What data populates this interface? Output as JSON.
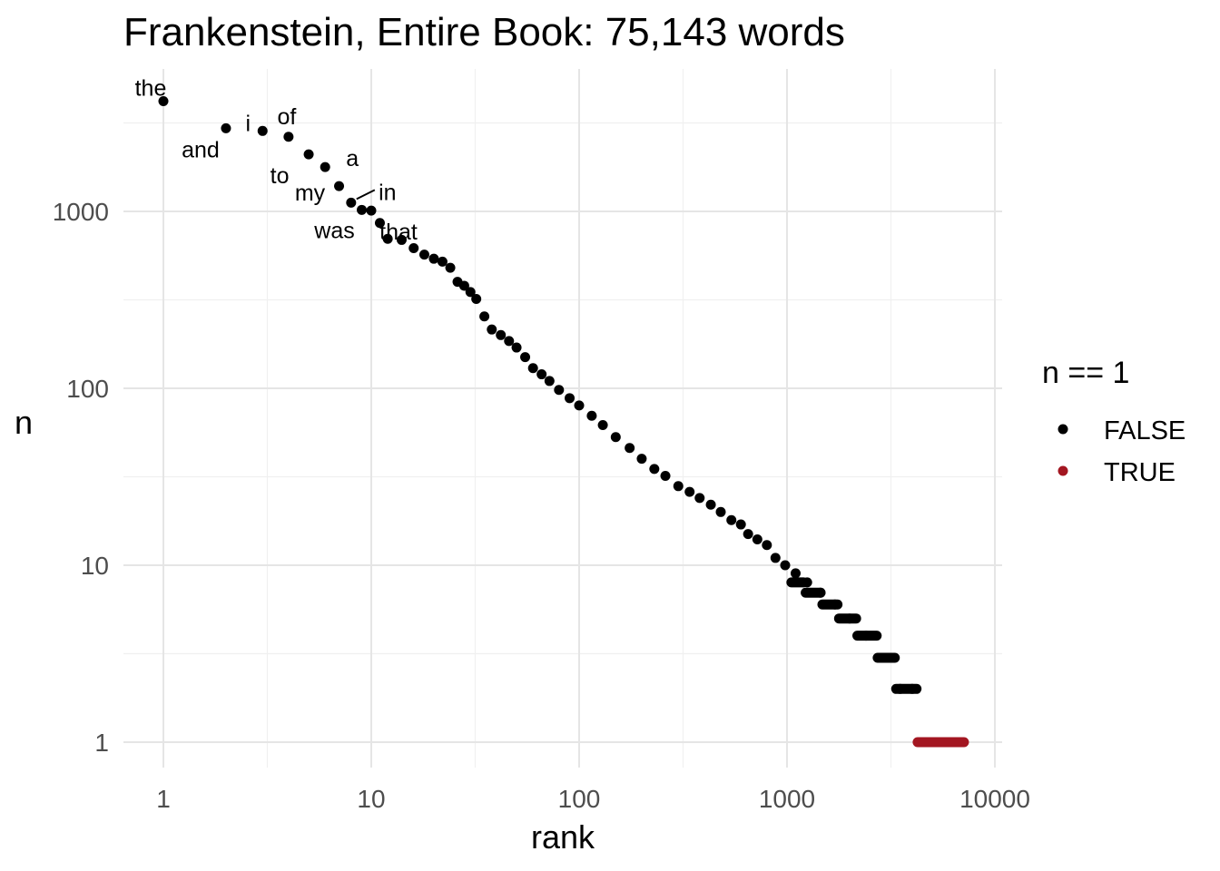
{
  "chart_data": {
    "type": "scatter",
    "title": "Frankenstein, Entire Book: 75,143 words",
    "xlabel": "rank",
    "ylabel": "n",
    "x_scale": "log10",
    "y_scale": "log10",
    "xlim": [
      0.8,
      10000
    ],
    "ylim": [
      0.8,
      6000
    ],
    "x_ticks": [
      1,
      10,
      100,
      1000,
      10000
    ],
    "x_tick_labels": [
      "1",
      "10",
      "100",
      "1000",
      "10000"
    ],
    "y_ticks": [
      1,
      10,
      100,
      1000
    ],
    "y_tick_labels": [
      "1",
      "10",
      "100",
      "1000"
    ],
    "grid": true,
    "legend": {
      "title": "n == 1",
      "position": "right",
      "entries": [
        {
          "label": "FALSE",
          "color": "#000000"
        },
        {
          "label": "TRUE",
          "color": "#a31621"
        }
      ]
    },
    "labeled_points": [
      {
        "word": "the",
        "rank": 1,
        "n": 4200
      },
      {
        "word": "and",
        "rank": 2,
        "n": 2950
      },
      {
        "word": "i",
        "rank": 3,
        "n": 2850
      },
      {
        "word": "of",
        "rank": 4,
        "n": 2640
      },
      {
        "word": "to",
        "rank": 5,
        "n": 2100
      },
      {
        "word": "a",
        "rank": 6,
        "n": 1780
      },
      {
        "word": "my",
        "rank": 7,
        "n": 1390
      },
      {
        "word": "in",
        "rank": 8,
        "n": 1120
      },
      {
        "word": "was",
        "rank": 9,
        "n": 1020
      },
      {
        "word": "that",
        "rank": 10,
        "n": 1010
      }
    ],
    "series": [
      {
        "name": "FALSE",
        "color": "#000000",
        "points": [
          [
            11,
            860
          ],
          [
            12,
            700
          ],
          [
            14,
            690
          ],
          [
            16,
            620
          ],
          [
            18,
            570
          ],
          [
            20,
            540
          ],
          [
            22,
            520
          ],
          [
            24,
            480
          ],
          [
            26,
            400
          ],
          [
            28,
            380
          ],
          [
            30,
            350
          ],
          [
            32,
            320
          ],
          [
            35,
            255
          ],
          [
            38,
            215
          ],
          [
            42,
            200
          ],
          [
            46,
            185
          ],
          [
            50,
            170
          ],
          [
            55,
            150
          ],
          [
            60,
            130
          ],
          [
            66,
            120
          ],
          [
            72,
            110
          ],
          [
            80,
            98
          ],
          [
            90,
            88
          ],
          [
            100,
            80
          ],
          [
            115,
            70
          ],
          [
            130,
            62
          ],
          [
            150,
            53
          ],
          [
            175,
            46
          ],
          [
            200,
            40
          ],
          [
            230,
            35
          ],
          [
            260,
            32
          ],
          [
            300,
            28
          ],
          [
            340,
            26
          ],
          [
            380,
            24
          ],
          [
            430,
            22
          ],
          [
            480,
            20
          ],
          [
            540,
            18
          ],
          [
            600,
            17
          ],
          [
            650,
            15
          ],
          [
            720,
            14
          ],
          [
            800,
            13
          ],
          [
            880,
            11
          ],
          [
            980,
            10
          ],
          [
            1100,
            9
          ],
          [
            1250,
            8
          ],
          [
            1450,
            7
          ],
          [
            1700,
            6
          ],
          [
            2000,
            5
          ],
          [
            2400,
            4
          ],
          [
            2900,
            3
          ],
          [
            3500,
            2
          ],
          [
            4000,
            2
          ]
        ],
        "steps": [
          {
            "n": 8,
            "rank_from": 1050,
            "rank_to": 1200
          },
          {
            "n": 7,
            "rank_from": 1230,
            "rank_to": 1450
          },
          {
            "n": 6,
            "rank_from": 1480,
            "rank_to": 1750
          },
          {
            "n": 5,
            "rank_from": 1780,
            "rank_to": 2150
          },
          {
            "n": 4,
            "rank_from": 2180,
            "rank_to": 2700
          },
          {
            "n": 3,
            "rank_from": 2730,
            "rank_to": 3300
          },
          {
            "n": 2,
            "rank_from": 3350,
            "rank_to": 4200
          }
        ]
      },
      {
        "name": "TRUE",
        "color": "#a31621",
        "steps": [
          {
            "n": 1,
            "rank_from": 4250,
            "rank_to": 7100
          }
        ]
      }
    ]
  }
}
